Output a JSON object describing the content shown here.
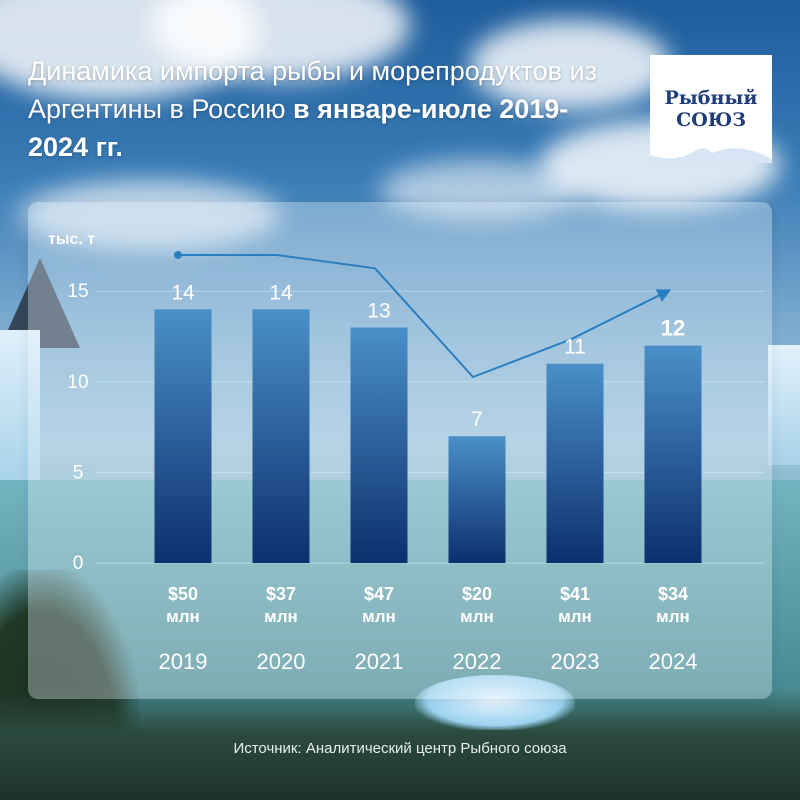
{
  "title": {
    "regular": "Динамика импорта рыбы и морепродуктов из Аргентины в Россию ",
    "bold": "в январе-июле 2019-2024 гг."
  },
  "logo": {
    "line1": "Рыбный",
    "line2": "СОЮЗ"
  },
  "source": "Источник: Аналитический центр Рыбного союза",
  "colors": {
    "bar_top": "#4a90c8",
    "bar_bottom": "#0d2f6e",
    "line": "#2a7fc1",
    "text_white": "#ffffff"
  },
  "chart_data": {
    "type": "bar",
    "ylabel": "тыс. т",
    "ylim": [
      0,
      17
    ],
    "yticks": [
      0,
      5,
      10,
      15
    ],
    "grid": true,
    "categories": [
      "2019",
      "2020",
      "2021",
      "2022",
      "2023",
      "2024"
    ],
    "values": [
      14,
      14,
      13,
      7,
      11,
      12
    ],
    "value_labels": [
      "14",
      "14",
      "13",
      "7",
      "11",
      "12"
    ],
    "highlight_last_label": true,
    "money_labels": [
      "$50",
      "$37",
      "$47",
      "$20",
      "$41",
      "$34"
    ],
    "money_unit": "млн",
    "trend_line": {
      "kind": "decorative trend arrow",
      "relative_levels": [
        1.0,
        1.0,
        0.94,
        0.45,
        0.62,
        0.78
      ]
    }
  }
}
